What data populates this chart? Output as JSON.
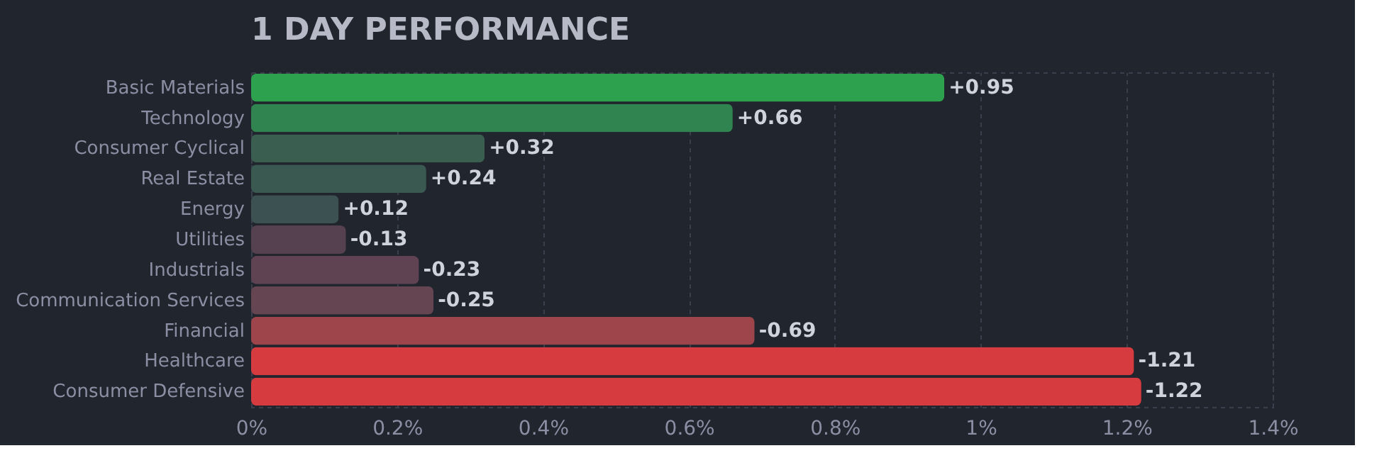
{
  "chart_data": {
    "type": "bar",
    "orientation": "horizontal",
    "title": "1 DAY PERFORMANCE",
    "categories": [
      "Basic Materials",
      "Technology",
      "Consumer Cyclical",
      "Real Estate",
      "Energy",
      "Utilities",
      "Industrials",
      "Communication Services",
      "Financial",
      "Healthcare",
      "Consumer Defensive"
    ],
    "values": [
      0.95,
      0.66,
      0.32,
      0.24,
      0.12,
      0.13,
      0.23,
      0.25,
      0.69,
      1.21,
      1.22
    ],
    "colors": [
      "#2ea14f",
      "#30844f",
      "#3a5e50",
      "#3a5951",
      "#3c5252",
      "#55414f",
      "#5f4352",
      "#654552",
      "#9e444b",
      "#d63c3f",
      "#d63c3f"
    ],
    "xlim": [
      0,
      1.4
    ],
    "xticks": [
      {
        "value": 0,
        "label": "0%"
      },
      {
        "value": 0.2,
        "label": "0.2%"
      },
      {
        "value": 0.4,
        "label": "0.4%"
      },
      {
        "value": 0.6,
        "label": "0.6%"
      },
      {
        "value": 0.8,
        "label": "0.8%"
      },
      {
        "value": 1,
        "label": "1%"
      },
      {
        "value": 1.2,
        "label": "1.2%"
      },
      {
        "value": 1.4,
        "label": "1.4%"
      }
    ],
    "annotations": [
      {
        "text": "+0.95",
        "x": 0.95,
        "y": "Basic Materials"
      },
      {
        "text": "+0.66",
        "x": 0.66,
        "y": "Technology"
      },
      {
        "text": "+0.32",
        "x": 0.32,
        "y": "Consumer Cyclical"
      },
      {
        "text": "+0.24",
        "x": 0.24,
        "y": "Real Estate"
      },
      {
        "text": "+0.12",
        "x": 0.12,
        "y": "Energy"
      },
      {
        "text": "-0.13",
        "x": 0.13,
        "y": "Utilities"
      },
      {
        "text": "-0.23",
        "x": 0.23,
        "y": "Industrials"
      },
      {
        "text": "-0.25",
        "x": 0.25,
        "y": "Communication Services"
      },
      {
        "text": "-0.69",
        "x": 0.69,
        "y": "Financial"
      },
      {
        "text": "-1.21",
        "x": 1.21,
        "y": "Healthcare"
      },
      {
        "text": "-1.22",
        "x": 1.22,
        "y": "Consumer Defensive"
      }
    ],
    "grid": "x",
    "legend": false
  }
}
